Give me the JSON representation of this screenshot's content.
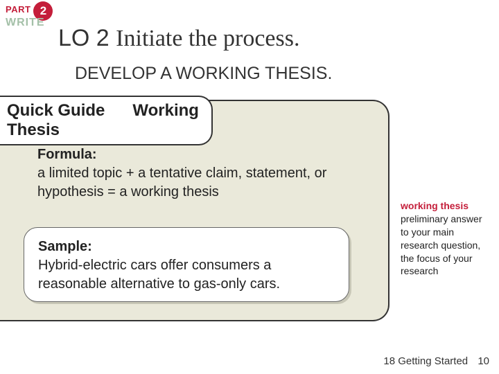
{
  "badge": {
    "part_label": "PART",
    "part_number": "2",
    "write_label": "WRITE"
  },
  "heading": {
    "lo": "LO 2",
    "title": "Initiate the process."
  },
  "subheading": "DEVELOP A WORKING THESIS.",
  "quick_guide": {
    "label_line1": "Quick Guide",
    "label_line2": "Thesis",
    "working": "Working"
  },
  "formula": {
    "label": "Formula:",
    "text": "a limited topic + a tentative claim, statement, or hypothesis = a working thesis"
  },
  "sample": {
    "label": "Sample:",
    "text": "Hybrid-electric cars offer consumers a reasonable alternative to gas-only cars."
  },
  "definition": {
    "term": "working thesis",
    "body": "preliminary answer to your main research question, the focus of your research"
  },
  "footer": {
    "chapter": "18 Getting Started",
    "page": "10"
  },
  "colors": {
    "accent_red": "#c41e3a",
    "box_bg": "#eae9da",
    "write_color": "#a4c0a8"
  }
}
